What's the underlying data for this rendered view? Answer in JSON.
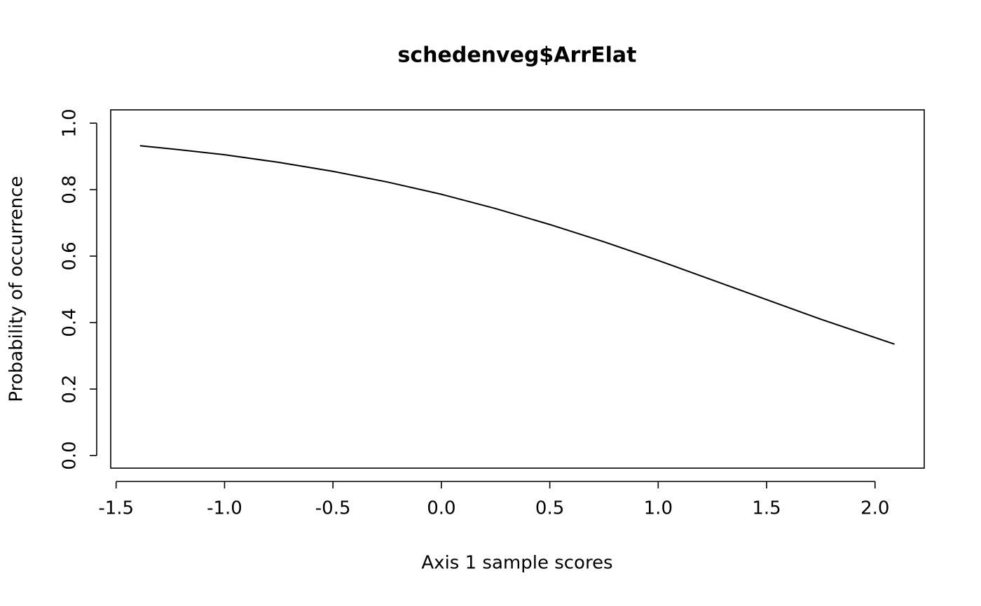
{
  "chart_data": {
    "type": "line",
    "title": "schedenveg$ArrElat",
    "x_label": "Axis 1 sample scores",
    "y_label": "Probability of occurrence",
    "x": [
      -1.39,
      -1.25,
      -1.0,
      -0.75,
      -0.5,
      -0.25,
      0,
      0.25,
      0.5,
      0.75,
      1.0,
      1.25,
      1.5,
      1.75,
      2.09
    ],
    "series": [
      {
        "color": "#000000",
        "values": [
          0.932,
          0.923,
          0.905,
          0.882,
          0.855,
          0.823,
          0.786,
          0.743,
          0.695,
          0.643,
          0.587,
          0.528,
          0.469,
          0.41,
          0.335
        ]
      }
    ],
    "xlim": [
      -1.525,
      2.227
    ],
    "ylim": [
      -0.038,
      1.04
    ],
    "xticks": [
      {
        "value": -1.5,
        "label": "-1.5"
      },
      {
        "value": -1,
        "label": "-1.0"
      },
      -0.5,
      {
        "value": 0,
        "label": "0.0"
      },
      0.5,
      {
        "value": 1,
        "label": "1.0"
      },
      1.5,
      {
        "value": 2,
        "label": "2.0"
      }
    ],
    "yticks": [
      {
        "value": 0,
        "label": "0.0"
      },
      0.2,
      0.4,
      0.6,
      0.8,
      {
        "value": 1,
        "label": "1.0"
      }
    ]
  }
}
